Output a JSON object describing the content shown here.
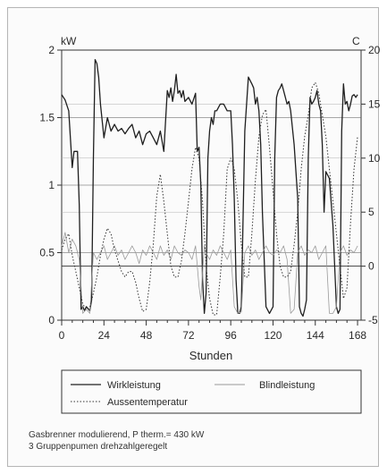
{
  "chart_data": {
    "type": "line",
    "xlabel": "Stunden",
    "ylabel_left": "kW",
    "ylabel_right": "C",
    "xlim": [
      0,
      170
    ],
    "ylim_left": [
      0,
      2
    ],
    "ylim_right": [
      -5,
      20
    ],
    "x_ticks": [
      "0",
      "24",
      "48",
      "72",
      "96",
      "120",
      "144",
      "168"
    ],
    "y_left_ticks": [
      "0",
      "0.5",
      "1",
      "1.5",
      "2"
    ],
    "y_right_ticks": [
      "-5",
      "0",
      "5",
      "10",
      "15",
      "20"
    ],
    "grid": true,
    "legend_position": "bottom",
    "series": [
      {
        "name": "Wirkleistung",
        "axis": "left",
        "style": "solid",
        "color": "#1f1f1f",
        "x": [
          0,
          2,
          4,
          6,
          7,
          8,
          9,
          10,
          11,
          12,
          13,
          14,
          16,
          17,
          18,
          19,
          20,
          21,
          22,
          24,
          26,
          28,
          30,
          32,
          34,
          36,
          38,
          40,
          42,
          44,
          46,
          48,
          50,
          52,
          54,
          56,
          58,
          60,
          61,
          62,
          63,
          64,
          65,
          66,
          67,
          68,
          69,
          70,
          72,
          74,
          76,
          77,
          78,
          79,
          80,
          81,
          82,
          83,
          84,
          85,
          86,
          87,
          88,
          90,
          92,
          94,
          96,
          97,
          98,
          99,
          100,
          101,
          102,
          104,
          106,
          108,
          109,
          110,
          111,
          112,
          113,
          114,
          116,
          118,
          120,
          121,
          122,
          123,
          124,
          125,
          126,
          127,
          128,
          129,
          130,
          132,
          134,
          135,
          136,
          137,
          138,
          139,
          140,
          141,
          142,
          143,
          144,
          145,
          146,
          147,
          148,
          149,
          150,
          152,
          154,
          156,
          157,
          158,
          159,
          160,
          161,
          162,
          163,
          164,
          165,
          166,
          167,
          168
        ],
        "y": [
          1.67,
          1.63,
          1.55,
          1.13,
          1.25,
          1.25,
          1.25,
          0.85,
          0.08,
          0.1,
          0.07,
          0.1,
          0.07,
          0.15,
          1.2,
          1.93,
          1.9,
          1.8,
          1.6,
          1.35,
          1.5,
          1.4,
          1.45,
          1.4,
          1.42,
          1.38,
          1.42,
          1.45,
          1.35,
          1.4,
          1.3,
          1.38,
          1.4,
          1.35,
          1.3,
          1.4,
          1.25,
          1.7,
          1.65,
          1.72,
          1.62,
          1.7,
          1.82,
          1.68,
          1.7,
          1.65,
          1.7,
          1.62,
          1.65,
          1.6,
          1.68,
          1.25,
          1.28,
          1.0,
          0.3,
          0.05,
          0.2,
          1.2,
          1.4,
          1.5,
          1.45,
          1.55,
          1.55,
          1.6,
          1.6,
          1.55,
          1.55,
          1.3,
          0.9,
          0.3,
          0.05,
          0.05,
          0.1,
          1.4,
          1.8,
          1.75,
          1.72,
          1.6,
          1.65,
          1.55,
          1.3,
          0.8,
          0.1,
          0.05,
          0.1,
          1.2,
          1.65,
          1.7,
          1.72,
          1.75,
          1.7,
          1.65,
          1.6,
          1.62,
          1.55,
          1.3,
          0.9,
          0.1,
          0.05,
          0.03,
          0.08,
          0.15,
          1.2,
          1.65,
          1.6,
          1.62,
          1.65,
          1.7,
          1.6,
          1.55,
          1.3,
          0.8,
          1.1,
          1.05,
          0.7,
          0.1,
          0.05,
          0.08,
          1.4,
          1.75,
          1.6,
          1.62,
          1.55,
          1.6,
          1.66,
          1.67,
          1.65,
          1.67
        ]
      },
      {
        "name": "Blindleistung",
        "axis": "left",
        "style": "solid",
        "color": "#9a9a9a",
        "x": [
          0,
          2,
          4,
          6,
          8,
          10,
          12,
          14,
          16,
          18,
          20,
          22,
          24,
          26,
          28,
          30,
          32,
          34,
          36,
          38,
          40,
          42,
          44,
          46,
          48,
          50,
          52,
          54,
          56,
          58,
          60,
          62,
          64,
          66,
          68,
          70,
          72,
          74,
          76,
          78,
          79,
          80,
          81,
          82,
          84,
          86,
          88,
          90,
          92,
          94,
          96,
          98,
          100,
          102,
          104,
          106,
          108,
          110,
          112,
          114,
          116,
          118,
          120,
          122,
          124,
          126,
          128,
          130,
          132,
          134,
          136,
          138,
          140,
          142,
          144,
          146,
          148,
          150,
          152,
          154,
          156,
          158,
          160,
          162,
          164,
          166,
          168
        ],
        "y": [
          0.55,
          0.65,
          0.5,
          0.6,
          0.55,
          0.45,
          0.05,
          0.08,
          0.05,
          0.5,
          0.45,
          0.5,
          0.55,
          0.45,
          0.5,
          0.55,
          0.48,
          0.52,
          0.45,
          0.5,
          0.55,
          0.5,
          0.42,
          0.52,
          0.48,
          0.55,
          0.5,
          0.45,
          0.55,
          0.48,
          0.52,
          0.45,
          0.55,
          0.5,
          0.48,
          0.52,
          0.5,
          0.45,
          0.55,
          0.25,
          0.15,
          0.35,
          0.55,
          0.5,
          0.45,
          0.52,
          0.48,
          0.55,
          0.5,
          0.45,
          0.52,
          0.1,
          0.05,
          0.06,
          0.5,
          0.55,
          0.48,
          0.52,
          0.45,
          0.5,
          0.55,
          0.5,
          0.48,
          0.52,
          0.5,
          0.55,
          0.45,
          0.05,
          0.08,
          0.5,
          0.55,
          0.48,
          0.52,
          0.5,
          0.55,
          0.45,
          0.5,
          0.55,
          0.05,
          0.05,
          0.1,
          0.5,
          0.55,
          0.48,
          0.52,
          0.5,
          0.55
        ]
      },
      {
        "name": "Aussentemperatur",
        "axis": "right",
        "style": "dotted",
        "color": "#333333",
        "x": [
          0,
          2,
          4,
          6,
          8,
          10,
          12,
          14,
          16,
          18,
          20,
          22,
          24,
          26,
          28,
          30,
          32,
          34,
          36,
          38,
          40,
          42,
          44,
          46,
          48,
          50,
          52,
          54,
          56,
          58,
          60,
          62,
          64,
          66,
          68,
          70,
          72,
          74,
          76,
          78,
          80,
          82,
          84,
          86,
          88,
          90,
          92,
          94,
          96,
          98,
          100,
          102,
          104,
          106,
          108,
          110,
          112,
          114,
          116,
          118,
          120,
          122,
          124,
          126,
          128,
          130,
          132,
          134,
          136,
          138,
          140,
          142,
          144,
          146,
          148,
          150,
          152,
          154,
          156,
          158,
          160,
          162,
          164,
          166,
          168
        ],
        "y": [
          1.5,
          2.5,
          3,
          1,
          -0.5,
          -2,
          -3.5,
          -4,
          -3.8,
          -2.5,
          -1,
          1,
          2.5,
          3.5,
          3,
          1.5,
          0.5,
          -0.5,
          -1,
          -0.5,
          -0.5,
          -1.5,
          -3,
          -4.2,
          -4,
          -1.5,
          2,
          6.5,
          8.5,
          6,
          3,
          0,
          -1,
          -1,
          0.5,
          3,
          6,
          9,
          11,
          10,
          6,
          0,
          -3,
          -4.5,
          -4.5,
          -1,
          3,
          9,
          10,
          9,
          6,
          2,
          -1,
          -1,
          3,
          8,
          12,
          14,
          14.5,
          11,
          7,
          3,
          0,
          -1,
          -1,
          -0.5,
          2,
          5,
          9,
          12,
          14,
          16.5,
          17,
          16,
          14,
          12,
          9,
          6,
          3,
          0,
          -3,
          -2,
          4,
          9,
          12
        ]
      }
    ]
  },
  "legend": {
    "wirk": "Wirkleistung",
    "blind": "Blindleistung",
    "aussen": "Aussentemperatur"
  },
  "notes": {
    "line1": "Gasbrenner modulierend, P therm.= 430 kW",
    "line2": "3 Gruppenpumen drehzahlgeregelt"
  }
}
